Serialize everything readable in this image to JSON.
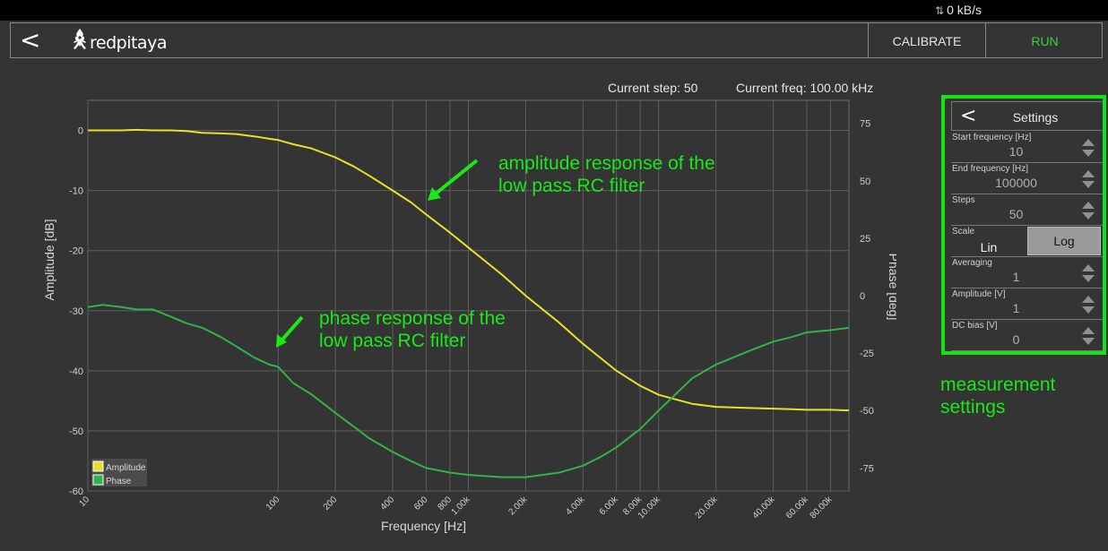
{
  "topbar": {
    "network_rate": "0 kB/s"
  },
  "navbar": {
    "back_icon": "chevron-left-icon",
    "logo_text": "redpitaya",
    "calibrate_label": "CALIBRATE",
    "run_label": "RUN",
    "run_color": "#3fcf3f"
  },
  "status": {
    "current_step": "Current step: 50",
    "current_freq": "Current freq: 100.00 kHz"
  },
  "settings": {
    "title": "Settings",
    "fields": [
      {
        "label": "Start frequency [Hz]",
        "value": "10"
      },
      {
        "label": "End frequency [Hz]",
        "value": "100000"
      },
      {
        "label": "Steps",
        "value": "50"
      },
      {
        "label": "Scale",
        "options": [
          "Lin",
          "Log"
        ],
        "selected": "Log"
      },
      {
        "label": "Averaging",
        "value": "1"
      },
      {
        "label": "Amplitude [V]",
        "value": "1"
      },
      {
        "label": "DC bias [V]",
        "value": "0"
      }
    ]
  },
  "annotations": {
    "amplitude_note": [
      "amplitude response of the",
      "low pass RC filter"
    ],
    "phase_note": [
      "phase response of the",
      "low pass RC filter"
    ],
    "settings_note": [
      "measurement",
      "settings"
    ],
    "highlight_color": "#15e115"
  },
  "chart_data": {
    "type": "line",
    "xscale": "log",
    "xlabel": "Frequency [Hz]",
    "ylabel_left": "Amplitude [dB]",
    "ylabel_right": "Phase [deg]",
    "xlim": [
      10,
      100000
    ],
    "ylim_left": [
      -60,
      5
    ],
    "ylim_right": [
      -85,
      85
    ],
    "x_ticks": [
      10,
      100,
      200,
      400,
      600,
      800,
      1000,
      2000,
      4000,
      6000,
      8000,
      10000,
      20000,
      40000,
      60000,
      80000
    ],
    "x_tick_labels": [
      "10",
      "100",
      "200",
      "400",
      "600",
      "800",
      "1.00k",
      "2.00k",
      "4.00k",
      "6.00k",
      "8.00k",
      "10.00k",
      "20.00k",
      "40.00k",
      "60.00k",
      "80.00k"
    ],
    "y_left_ticks": [
      0,
      -10,
      -20,
      -30,
      -40,
      -50,
      -60
    ],
    "y_right_ticks": [
      75,
      50,
      25,
      0,
      -25,
      -50,
      -75
    ],
    "grid": true,
    "legend_position": "bottom-left",
    "series": [
      {
        "name": "Amplitude",
        "axis": "left",
        "color": "#e8e02a",
        "x": [
          10,
          12,
          15,
          18,
          22,
          27,
          33,
          40,
          50,
          60,
          75,
          90,
          100,
          120,
          150,
          200,
          250,
          300,
          400,
          500,
          600,
          800,
          1000,
          1500,
          2000,
          3000,
          4000,
          5000,
          6000,
          8000,
          10000,
          15000,
          20000,
          30000,
          40000,
          50000,
          60000,
          80000,
          100000
        ],
        "values": [
          0,
          0,
          0,
          0.1,
          0,
          0,
          -0.1,
          -0.4,
          -0.5,
          -0.6,
          -1.0,
          -1.4,
          -1.6,
          -2.3,
          -3.0,
          -4.5,
          -6.0,
          -7.5,
          -10.0,
          -12.0,
          -14.0,
          -17.0,
          -19.5,
          -24.0,
          -27.5,
          -32.0,
          -35.5,
          -38.0,
          -40.0,
          -42.5,
          -44.0,
          -45.5,
          -46.0,
          -46.2,
          -46.3,
          -46.4,
          -46.5,
          -46.5,
          -46.6
        ]
      },
      {
        "name": "Phase",
        "axis": "right",
        "color": "#2fb34a",
        "x": [
          10,
          12,
          15,
          18,
          22,
          27,
          33,
          40,
          50,
          60,
          75,
          90,
          100,
          120,
          150,
          200,
          250,
          300,
          400,
          500,
          600,
          800,
          1000,
          1500,
          2000,
          3000,
          4000,
          5000,
          6000,
          8000,
          10000,
          15000,
          20000,
          30000,
          40000,
          50000,
          60000,
          80000,
          100000
        ],
        "values": [
          -5,
          -4,
          -5,
          -6,
          -6,
          -9,
          -12,
          -14,
          -18,
          -22,
          -27,
          -30,
          -31,
          -38,
          -43,
          -51,
          -57,
          -62,
          -68,
          -72,
          -75,
          -77,
          -78,
          -79,
          -79,
          -77,
          -74,
          -70,
          -66,
          -58,
          -50,
          -36,
          -30,
          -24,
          -20,
          -18,
          -16,
          -15,
          -14
        ]
      }
    ]
  }
}
